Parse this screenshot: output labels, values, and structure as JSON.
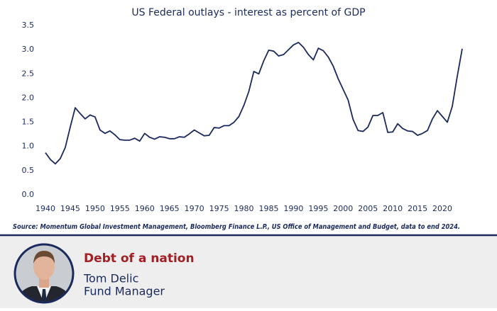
{
  "chart_data": {
    "type": "line",
    "title": "US Federal outlays - interest as percent of GDP",
    "x": [
      1940,
      1941,
      1942,
      1943,
      1944,
      1945,
      1946,
      1947,
      1948,
      1949,
      1950,
      1951,
      1952,
      1953,
      1954,
      1955,
      1956,
      1957,
      1958,
      1959,
      1960,
      1961,
      1962,
      1963,
      1964,
      1965,
      1966,
      1967,
      1968,
      1969,
      1970,
      1971,
      1972,
      1973,
      1974,
      1975,
      1976,
      1977,
      1978,
      1979,
      1980,
      1981,
      1982,
      1983,
      1984,
      1985,
      1986,
      1987,
      1988,
      1989,
      1990,
      1991,
      1992,
      1993,
      1994,
      1995,
      1996,
      1997,
      1998,
      1999,
      2000,
      2001,
      2002,
      2003,
      2004,
      2005,
      2006,
      2007,
      2008,
      2009,
      2010,
      2011,
      2012,
      2013,
      2014,
      2015,
      2016,
      2017,
      2018,
      2019,
      2020,
      2021,
      2022,
      2023,
      2024
    ],
    "values": [
      0.87,
      0.73,
      0.64,
      0.75,
      0.98,
      1.4,
      1.8,
      1.68,
      1.57,
      1.65,
      1.61,
      1.34,
      1.27,
      1.32,
      1.24,
      1.14,
      1.13,
      1.13,
      1.17,
      1.11,
      1.27,
      1.19,
      1.15,
      1.2,
      1.19,
      1.16,
      1.16,
      1.2,
      1.19,
      1.26,
      1.34,
      1.28,
      1.22,
      1.23,
      1.39,
      1.38,
      1.43,
      1.43,
      1.5,
      1.62,
      1.85,
      2.14,
      2.55,
      2.5,
      2.77,
      2.99,
      2.97,
      2.87,
      2.9,
      3.0,
      3.1,
      3.15,
      3.05,
      2.9,
      2.79,
      3.03,
      2.98,
      2.85,
      2.66,
      2.4,
      2.18,
      1.96,
      1.56,
      1.33,
      1.31,
      1.4,
      1.64,
      1.64,
      1.7,
      1.29,
      1.3,
      1.47,
      1.37,
      1.32,
      1.31,
      1.23,
      1.27,
      1.33,
      1.57,
      1.74,
      1.62,
      1.5,
      1.83,
      2.45,
      3.02
    ],
    "color": "#1b2a5c",
    "xlim": [
      1939,
      2025
    ],
    "xticks": [
      1940,
      1945,
      1950,
      1955,
      1960,
      1965,
      1970,
      1975,
      1980,
      1985,
      1990,
      1995,
      2000,
      2005,
      2010,
      2015,
      2020
    ],
    "ylim": [
      0,
      3.5
    ],
    "yticks": [
      {
        "value": 0,
        "label": "0.0"
      },
      0.5,
      {
        "value": 1,
        "label": "1.0"
      },
      1.5,
      {
        "value": 2,
        "label": "2.0"
      },
      2.5,
      {
        "value": 3,
        "label": "3.0"
      },
      3.5
    ],
    "grid": false,
    "source": "Source: Momentum Global Investment Management, Bloomberg Finance L.P., US Office of Management and Budget, data to end 2024."
  },
  "footer": {
    "heading": "Debt of a nation",
    "name": "Tom Delic",
    "role": "Fund Manager"
  }
}
